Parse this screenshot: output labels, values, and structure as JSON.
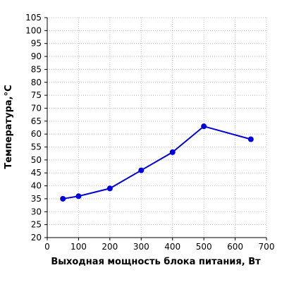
{
  "chart_data": {
    "type": "line",
    "title": "",
    "xlabel": "Выходная мощность блока питания, Вт",
    "ylabel": "Температура,°С",
    "xlim": [
      0,
      700
    ],
    "ylim": [
      20,
      105
    ],
    "x_ticks": [
      0,
      100,
      200,
      300,
      400,
      500,
      600,
      700
    ],
    "y_ticks": [
      20,
      25,
      30,
      35,
      40,
      45,
      50,
      55,
      60,
      65,
      70,
      75,
      80,
      85,
      90,
      95,
      100,
      105
    ],
    "grid": true,
    "legend": "none",
    "series": [
      {
        "color": "#0000dd",
        "x": [
          50,
          100,
          200,
          300,
          400,
          500,
          650
        ],
        "y": [
          35,
          36,
          39,
          46,
          53,
          63,
          58
        ]
      }
    ]
  }
}
